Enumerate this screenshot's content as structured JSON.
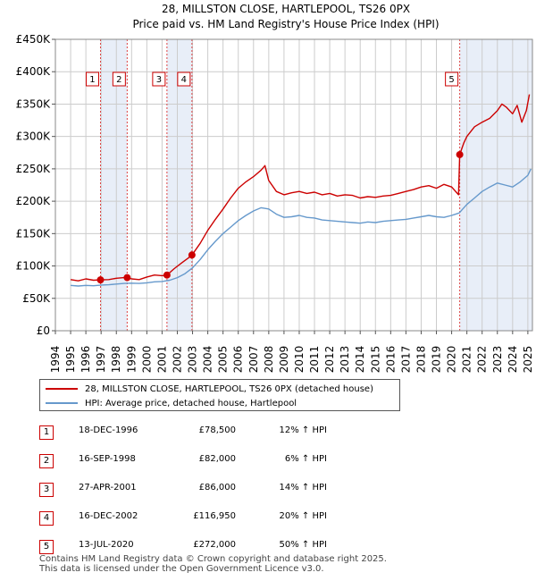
{
  "chart_data": {
    "type": "line",
    "title": "28, MILLSTON CLOSE, HARTLEPOOL, TS26 0PX",
    "subtitle": "Price paid vs. HM Land Registry's House Price Index (HPI)",
    "xlim": [
      1994.0,
      2025.3
    ],
    "ylim": [
      0,
      450000
    ],
    "y_ticks": [
      0,
      50000,
      100000,
      150000,
      200000,
      250000,
      300000,
      350000,
      400000,
      450000
    ],
    "y_tick_labels": [
      "£0",
      "£50K",
      "£100K",
      "£150K",
      "£200K",
      "£250K",
      "£300K",
      "£350K",
      "£400K",
      "£450K"
    ],
    "x_ticks": [
      1994,
      1995,
      1996,
      1997,
      1998,
      1999,
      2000,
      2001,
      2002,
      2003,
      2004,
      2005,
      2006,
      2007,
      2008,
      2009,
      2010,
      2011,
      2012,
      2013,
      2014,
      2015,
      2016,
      2017,
      2018,
      2019,
      2020,
      2021,
      2022,
      2023,
      2024,
      2025
    ],
    "x_tick_labels": [
      "1994",
      "1995",
      "1996",
      "1997",
      "1998",
      "1999",
      "2000",
      "2001",
      "2002",
      "2003",
      "2004",
      "2005",
      "2006",
      "2007",
      "2008",
      "2009",
      "2010",
      "2011",
      "2012",
      "2013",
      "2014",
      "2015",
      "2016",
      "2017",
      "2018",
      "2019",
      "2020",
      "2021",
      "2022",
      "2023",
      "2024",
      "2025"
    ],
    "shaded_periods": [
      [
        1996.96,
        1998.71
      ],
      [
        2001.32,
        2002.96
      ],
      [
        2020.53,
        2025.3
      ]
    ],
    "series": [
      {
        "name": "28, MILLSTON CLOSE, HARTLEPOOL, TS26 0PX (detached house)",
        "color": "#cc0000",
        "x": [
          1995.0,
          1995.5,
          1996.0,
          1996.5,
          1996.96,
          1997.5,
          1998.0,
          1998.5,
          1998.71,
          1999.0,
          1999.5,
          2000.0,
          2000.5,
          2001.0,
          2001.32,
          2001.8,
          2002.3,
          2002.7,
          2002.96,
          2003.5,
          2004.0,
          2004.5,
          2005.0,
          2005.5,
          2006.0,
          2006.5,
          2007.0,
          2007.5,
          2007.75,
          2008.0,
          2008.5,
          2009.0,
          2009.5,
          2010.0,
          2010.5,
          2011.0,
          2011.5,
          2012.0,
          2012.5,
          2013.0,
          2013.5,
          2014.0,
          2014.5,
          2015.0,
          2015.5,
          2016.0,
          2016.5,
          2017.0,
          2017.5,
          2018.0,
          2018.5,
          2019.0,
          2019.5,
          2020.0,
          2020.45,
          2020.53,
          2020.8,
          2021.0,
          2021.5,
          2022.0,
          2022.5,
          2023.0,
          2023.3,
          2023.6,
          2024.0,
          2024.3,
          2024.6,
          2024.9,
          2025.1
        ],
        "values": [
          79000,
          77000,
          80000,
          78000,
          78500,
          79000,
          81000,
          82000,
          82000,
          80000,
          79000,
          83000,
          86000,
          85000,
          86000,
          96000,
          105000,
          112000,
          116950,
          135000,
          155000,
          172000,
          188000,
          205000,
          220000,
          230000,
          238000,
          248000,
          255000,
          232000,
          215000,
          210000,
          213000,
          215000,
          212000,
          214000,
          210000,
          212000,
          208000,
          210000,
          209000,
          205000,
          207000,
          206000,
          208000,
          209000,
          212000,
          215000,
          218000,
          222000,
          224000,
          220000,
          226000,
          222000,
          210000,
          272000,
          290000,
          300000,
          315000,
          322000,
          328000,
          340000,
          350000,
          345000,
          335000,
          348000,
          322000,
          340000,
          365000
        ]
      },
      {
        "name": "HPI: Average price, detached house, Hartlepool",
        "color": "#6699cc",
        "x": [
          1995.0,
          1995.5,
          1996.0,
          1996.5,
          1997.0,
          1997.5,
          1998.0,
          1998.5,
          1999.0,
          1999.5,
          2000.0,
          2000.5,
          2001.0,
          2001.5,
          2002.0,
          2002.5,
          2003.0,
          2003.5,
          2004.0,
          2004.5,
          2005.0,
          2005.5,
          2006.0,
          2006.5,
          2007.0,
          2007.5,
          2008.0,
          2008.5,
          2009.0,
          2009.5,
          2010.0,
          2010.5,
          2011.0,
          2011.5,
          2012.0,
          2012.5,
          2013.0,
          2013.5,
          2014.0,
          2014.5,
          2015.0,
          2015.5,
          2016.0,
          2016.5,
          2017.0,
          2017.5,
          2018.0,
          2018.5,
          2019.0,
          2019.5,
          2020.0,
          2020.5,
          2021.0,
          2021.5,
          2022.0,
          2022.5,
          2023.0,
          2023.5,
          2024.0,
          2024.5,
          2025.0,
          2025.2
        ],
        "values": [
          70000,
          69000,
          70000,
          69500,
          70500,
          71000,
          72000,
          73000,
          73500,
          73000,
          74000,
          75500,
          76000,
          78000,
          82000,
          88000,
          97000,
          110000,
          125000,
          138000,
          150000,
          160000,
          170000,
          178000,
          185000,
          190000,
          188000,
          180000,
          175000,
          176000,
          178000,
          175000,
          174000,
          171000,
          170000,
          169000,
          168000,
          167000,
          166000,
          168000,
          167000,
          169000,
          170000,
          171000,
          172000,
          174000,
          176000,
          178000,
          176000,
          175000,
          178000,
          182000,
          195000,
          205000,
          215000,
          222000,
          228000,
          225000,
          222000,
          230000,
          240000,
          250000
        ]
      }
    ],
    "sale_markers": [
      {
        "label": "1",
        "x": 1996.96,
        "y": 78500
      },
      {
        "label": "2",
        "x": 1998.71,
        "y": 82000
      },
      {
        "label": "3",
        "x": 2001.32,
        "y": 86000
      },
      {
        "label": "4",
        "x": 2002.96,
        "y": 116950
      },
      {
        "label": "5",
        "x": 2020.53,
        "y": 272000
      }
    ]
  },
  "legend": {
    "property_label": "28, MILLSTON CLOSE, HARTLEPOOL, TS26 0PX (detached house)",
    "hpi_label": "HPI: Average price, detached house, Hartlepool"
  },
  "sales": [
    {
      "num": "1",
      "date": "18-DEC-1996",
      "price": "£78,500",
      "hpi": "12% ↑ HPI"
    },
    {
      "num": "2",
      "date": "16-SEP-1998",
      "price": "£82,000",
      "hpi": "6% ↑ HPI"
    },
    {
      "num": "3",
      "date": "27-APR-2001",
      "price": "£86,000",
      "hpi": "14% ↑ HPI"
    },
    {
      "num": "4",
      "date": "16-DEC-2002",
      "price": "£116,950",
      "hpi": "20% ↑ HPI"
    },
    {
      "num": "5",
      "date": "13-JUL-2020",
      "price": "£272,000",
      "hpi": "50% ↑ HPI"
    }
  ],
  "footer": {
    "line1": "Contains HM Land Registry data © Crown copyright and database right 2025.",
    "line2": "This data is licensed under the Open Government Licence v3.0."
  }
}
